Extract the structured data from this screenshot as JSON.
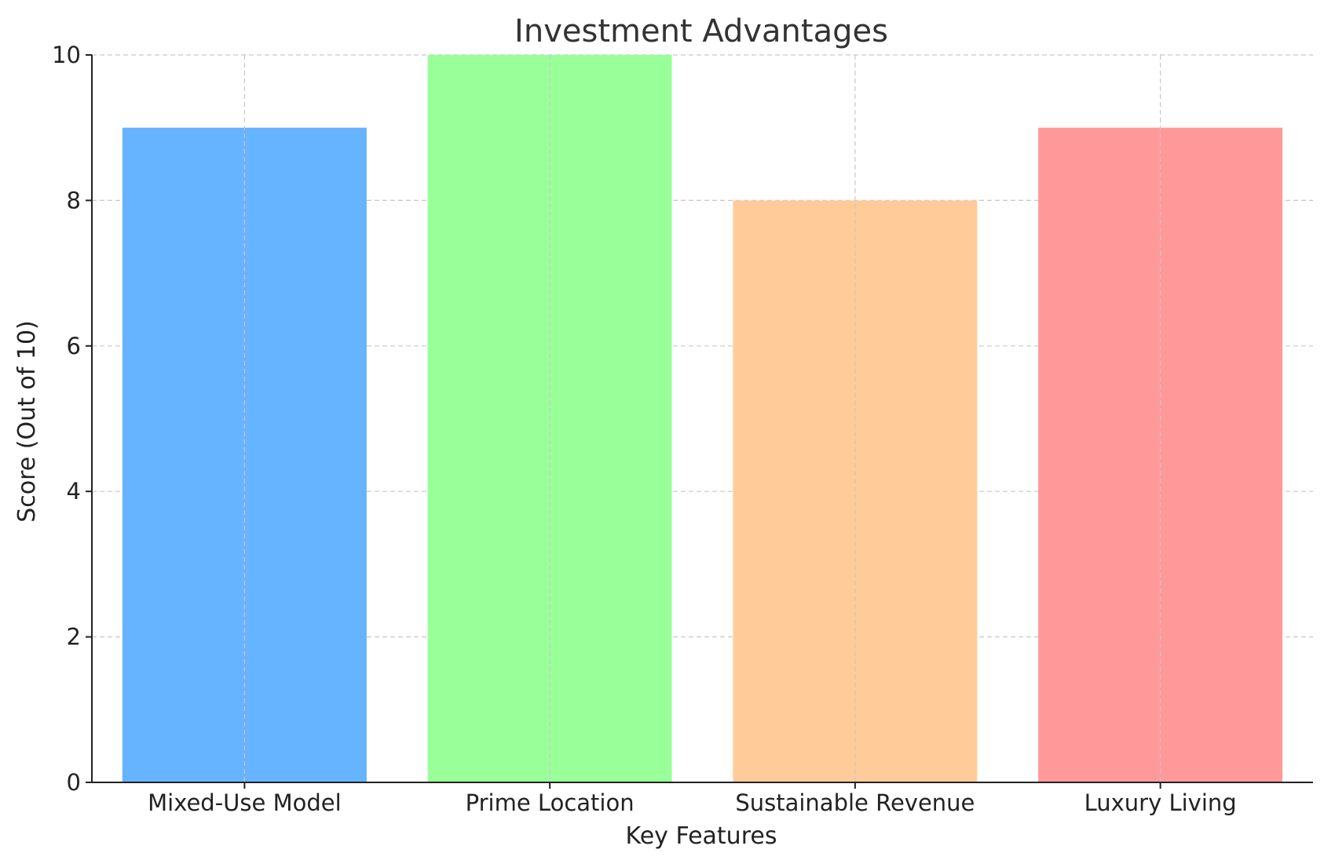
{
  "chart_data": {
    "type": "bar",
    "title": "Investment Advantages",
    "xlabel": "Key Features",
    "ylabel": "Score (Out of 10)",
    "categories": [
      "Mixed-Use Model",
      "Prime Location",
      "Sustainable Revenue",
      "Luxury Living"
    ],
    "values": [
      9,
      10,
      8,
      9
    ],
    "colors": [
      "#66b3ff",
      "#99ff99",
      "#ffcc99",
      "#ff9999"
    ],
    "ylim": [
      0,
      10
    ],
    "yticks": [
      0,
      2,
      4,
      6,
      8,
      10
    ],
    "grid": true,
    "legend": "none"
  }
}
